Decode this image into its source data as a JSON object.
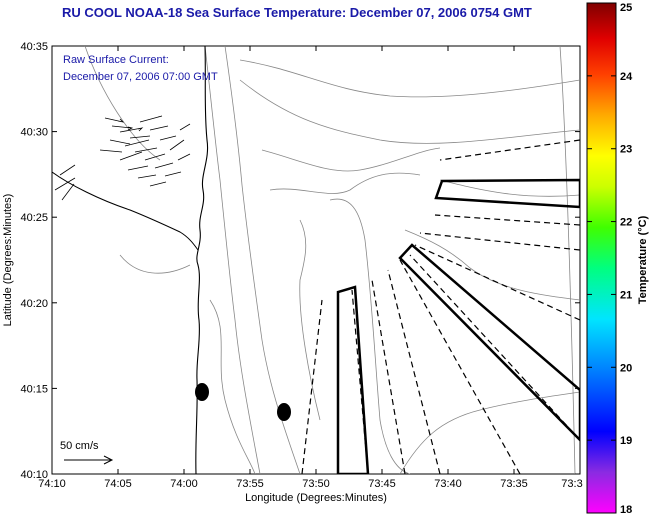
{
  "title": "RU COOL  NOAA-18  Sea Surface Temperature:  December 07, 2006 0754 GMT",
  "annotation": {
    "line1": "Raw Surface Current:",
    "line2": "December 07, 2006 07:00 GMT"
  },
  "scale_label": "50 cm/s",
  "x_axis": {
    "label": "Longitude (Degrees:Minutes)",
    "ticks": [
      "74:10",
      "74:05",
      "74:00",
      "73:55",
      "73:50",
      "73:45",
      "73:40",
      "73:35",
      "73:3"
    ]
  },
  "y_axis": {
    "label": "Latitude (Degrees:Minutes)",
    "ticks": [
      "40:35",
      "40:30",
      "40:25",
      "40:20",
      "40:15",
      "40:10"
    ]
  },
  "colorbar": {
    "label": "Temperature (°C)",
    "ticks": [
      "25",
      "24",
      "23",
      "22",
      "21",
      "20",
      "19",
      "18"
    ],
    "colors": [
      "#8b0000",
      "#ff0000",
      "#ff8c00",
      "#ffff00",
      "#00ff00",
      "#00ffff",
      "#0000ff",
      "#ff00ff"
    ]
  }
}
